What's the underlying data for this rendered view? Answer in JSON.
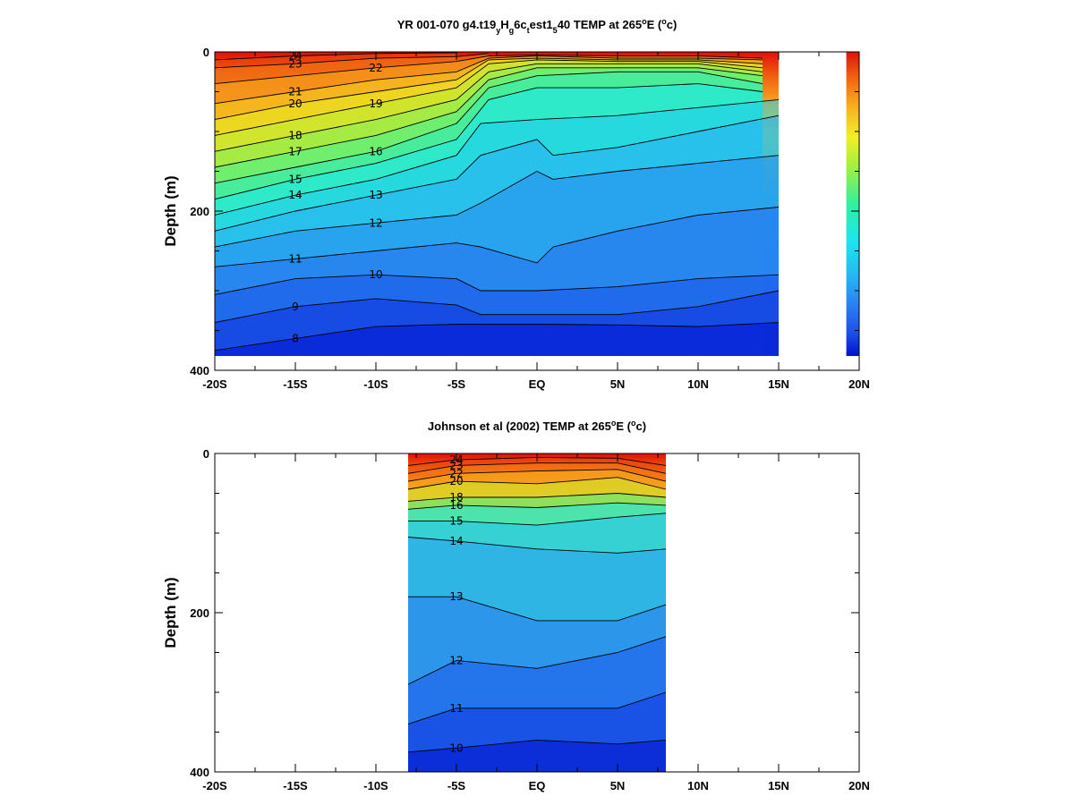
{
  "chart_data": [
    {
      "type": "heatmap",
      "variable": "TEMP",
      "title_parts": [
        "YR 001-070 g4.t19",
        "y",
        "H",
        "g",
        "6c",
        "t",
        "est1",
        "5",
        "40 TEMP at 265",
        "o",
        "E (",
        "o",
        "c)"
      ],
      "ylabel": "Depth (m)",
      "xlim": [
        -20,
        20
      ],
      "ylim": [
        400,
        0
      ],
      "y_ticks": [
        "0",
        "200",
        "400"
      ],
      "x_ticks": [
        "-20S",
        "-15S",
        "-10S",
        "-5S",
        "EQ",
        "5N",
        "10N",
        "15N",
        "20N"
      ],
      "data_x_range": [
        -20,
        15
      ],
      "land_mask_x_range": [
        15,
        19
      ],
      "colorscale": [
        "#0010d0",
        "#1a4ce8",
        "#2a7cf0",
        "#28b4f4",
        "#18e8f0",
        "#30f0a0",
        "#a0f040",
        "#f0f020",
        "#f8b020",
        "#f06010",
        "#e01008"
      ],
      "contours": [
        {
          "label": "8",
          "points": [
            [
              -20,
              375
            ],
            [
              -15,
              360
            ],
            [
              -10,
              345
            ],
            [
              -5,
              342
            ],
            [
              0,
              342
            ],
            [
              5,
              343
            ],
            [
              10,
              345
            ],
            [
              15,
              340
            ]
          ]
        },
        {
          "label": "9",
          "points": [
            [
              -20,
              340
            ],
            [
              -15,
              320
            ],
            [
              -10,
              310
            ],
            [
              -5,
              318
            ],
            [
              -3.5,
              330
            ],
            [
              0,
              330
            ],
            [
              5,
              330
            ],
            [
              10,
              320
            ],
            [
              15,
              300
            ]
          ]
        },
        {
          "label": "10",
          "points": [
            [
              -20,
              305
            ],
            [
              -15,
              285
            ],
            [
              -10,
              280
            ],
            [
              -5,
              285
            ],
            [
              -3.5,
              300
            ],
            [
              0,
              300
            ],
            [
              5,
              295
            ],
            [
              10,
              285
            ],
            [
              15,
              280
            ]
          ]
        },
        {
          "label": "11",
          "points": [
            [
              -20,
              270
            ],
            [
              -15,
              260
            ],
            [
              -10,
              250
            ],
            [
              -5,
              240
            ],
            [
              -3.5,
              245
            ],
            [
              0,
              265
            ],
            [
              1,
              245
            ],
            [
              5,
              225
            ],
            [
              10,
              205
            ],
            [
              15,
              195
            ]
          ]
        },
        {
          "label": "12",
          "points": [
            [
              -20,
              245
            ],
            [
              -15,
              225
            ],
            [
              -10,
              215
            ],
            [
              -5,
              205
            ],
            [
              -3.5,
              190
            ],
            [
              0,
              150
            ],
            [
              1,
              160
            ],
            [
              5,
              150
            ],
            [
              10,
              140
            ],
            [
              15,
              130
            ]
          ]
        },
        {
          "label": "13",
          "points": [
            [
              -20,
              225
            ],
            [
              -15,
              200
            ],
            [
              -10,
              180
            ],
            [
              -5,
              160
            ],
            [
              -3.5,
              130
            ],
            [
              0,
              110
            ],
            [
              1,
              130
            ],
            [
              5,
              120
            ],
            [
              10,
              100
            ],
            [
              15,
              80
            ]
          ]
        },
        {
          "label": "14",
          "points": [
            [
              -20,
              205
            ],
            [
              -15,
              180
            ],
            [
              -10,
              160
            ],
            [
              -5,
              130
            ],
            [
              -3.5,
              90
            ],
            [
              0,
              85
            ],
            [
              5,
              80
            ],
            [
              10,
              70
            ],
            [
              15,
              60
            ]
          ]
        },
        {
          "label": "15",
          "points": [
            [
              -20,
              185
            ],
            [
              -15,
              160
            ],
            [
              -10,
              140
            ],
            [
              -5,
              110
            ],
            [
              -3,
              60
            ],
            [
              0,
              45
            ],
            [
              5,
              45
            ],
            [
              10,
              40
            ],
            [
              14,
              50
            ]
          ]
        },
        {
          "label": "16",
          "points": [
            [
              -20,
              165
            ],
            [
              -15,
              145
            ],
            [
              -10,
              125
            ],
            [
              -5,
              90
            ],
            [
              -3,
              45
            ],
            [
              0,
              30
            ],
            [
              5,
              25
            ],
            [
              10,
              25
            ],
            [
              14,
              40
            ]
          ]
        },
        {
          "label": "17",
          "points": [
            [
              -20,
              145
            ],
            [
              -15,
              125
            ],
            [
              -10,
              105
            ],
            [
              -5,
              75
            ],
            [
              -3,
              35
            ],
            [
              0,
              20
            ],
            [
              5,
              20
            ],
            [
              10,
              20
            ],
            [
              14,
              30
            ]
          ]
        },
        {
          "label": "18",
          "points": [
            [
              -20,
              125
            ],
            [
              -15,
              105
            ],
            [
              -10,
              85
            ],
            [
              -5,
              60
            ],
            [
              -3,
              25
            ],
            [
              0,
              15
            ],
            [
              5,
              15
            ],
            [
              10,
              15
            ],
            [
              14,
              25
            ]
          ]
        },
        {
          "label": "19",
          "points": [
            [
              -20,
              105
            ],
            [
              -15,
              85
            ],
            [
              -10,
              65
            ],
            [
              -5,
              45
            ],
            [
              -3,
              15
            ],
            [
              0,
              10
            ],
            [
              5,
              12
            ],
            [
              10,
              12
            ],
            [
              14,
              20
            ]
          ]
        },
        {
          "label": "20",
          "points": [
            [
              -20,
              85
            ],
            [
              -15,
              65
            ],
            [
              -10,
              50
            ],
            [
              -5,
              35
            ],
            [
              -3,
              10
            ],
            [
              0,
              8
            ],
            [
              5,
              10
            ],
            [
              10,
              10
            ],
            [
              14,
              15
            ]
          ]
        },
        {
          "label": "21",
          "points": [
            [
              -20,
              65
            ],
            [
              -15,
              50
            ],
            [
              -10,
              35
            ],
            [
              -5,
              25
            ],
            [
              -3,
              8
            ],
            [
              0,
              5
            ],
            [
              5,
              8
            ],
            [
              10,
              8
            ],
            [
              14,
              10
            ]
          ]
        },
        {
          "label": "22",
          "points": [
            [
              -20,
              40
            ],
            [
              -15,
              30
            ],
            [
              -10,
              20
            ],
            [
              -5,
              12
            ],
            [
              -3,
              5
            ],
            [
              0,
              4
            ],
            [
              5,
              5
            ],
            [
              10,
              5
            ],
            [
              14,
              8
            ]
          ]
        },
        {
          "label": "23",
          "points": [
            [
              -20,
              20
            ],
            [
              -15,
              15
            ],
            [
              -10,
              8
            ],
            [
              -5,
              6
            ],
            [
              -3,
              2
            ]
          ]
        },
        {
          "label": "24",
          "points": [
            [
              -20,
              10
            ],
            [
              -15,
              5
            ],
            [
              -10,
              2
            ],
            [
              -5,
              1
            ]
          ]
        }
      ]
    },
    {
      "type": "heatmap",
      "variable": "TEMP",
      "title_parts": [
        "Johnson et al (2002) TEMP at 265",
        "o",
        "E (",
        "o",
        "c)"
      ],
      "ylabel": "Depth (m)",
      "xlim": [
        -20,
        20
      ],
      "ylim": [
        400,
        0
      ],
      "y_ticks": [
        "0",
        "200",
        "400"
      ],
      "x_ticks": [
        "-20S",
        "-15S",
        "-10S",
        "-5S",
        "EQ",
        "5N",
        "10N",
        "15N",
        "20N"
      ],
      "data_x_range": [
        -8,
        8
      ],
      "colorscale": [
        "#0010d0",
        "#1a4ce8",
        "#2a7cf0",
        "#28b4f4",
        "#18e8f0",
        "#30f0a0",
        "#a0f040",
        "#f0f020",
        "#f8b020",
        "#f06010",
        "#e01008"
      ],
      "contours": [
        {
          "label": "10",
          "points": [
            [
              -8,
              375
            ],
            [
              -5,
              370
            ],
            [
              0,
              360
            ],
            [
              5,
              365
            ],
            [
              8,
              360
            ]
          ]
        },
        {
          "label": "11",
          "points": [
            [
              -8,
              340
            ],
            [
              -5,
              320
            ],
            [
              0,
              320
            ],
            [
              5,
              320
            ],
            [
              8,
              300
            ]
          ]
        },
        {
          "label": "12",
          "points": [
            [
              -8,
              290
            ],
            [
              -5,
              260
            ],
            [
              0,
              270
            ],
            [
              5,
              250
            ],
            [
              8,
              230
            ]
          ]
        },
        {
          "label": "13",
          "points": [
            [
              -8,
              180
            ],
            [
              -5,
              180
            ],
            [
              0,
              210
            ],
            [
              5,
              210
            ],
            [
              8,
              190
            ]
          ]
        },
        {
          "label": "14",
          "points": [
            [
              -8,
              105
            ],
            [
              -5,
              110
            ],
            [
              0,
              120
            ],
            [
              5,
              125
            ],
            [
              8,
              120
            ]
          ]
        },
        {
          "label": "15",
          "points": [
            [
              -8,
              85
            ],
            [
              -5,
              85
            ],
            [
              0,
              90
            ],
            [
              5,
              80
            ],
            [
              8,
              75
            ]
          ]
        },
        {
          "label": "16",
          "points": [
            [
              -8,
              70
            ],
            [
              -5,
              65
            ],
            [
              0,
              68
            ],
            [
              5,
              62
            ],
            [
              8,
              65
            ]
          ]
        },
        {
          "label": "18",
          "points": [
            [
              -8,
              60
            ],
            [
              -5,
              55
            ],
            [
              0,
              55
            ],
            [
              5,
              50
            ],
            [
              8,
              55
            ]
          ]
        },
        {
          "label": "20",
          "points": [
            [
              -8,
              45
            ],
            [
              -5,
              35
            ],
            [
              0,
              38
            ],
            [
              5,
              30
            ],
            [
              8,
              45
            ]
          ]
        },
        {
          "label": "22",
          "points": [
            [
              -8,
              35
            ],
            [
              -5,
              25
            ],
            [
              0,
              22
            ],
            [
              5,
              20
            ],
            [
              8,
              35
            ]
          ]
        },
        {
          "label": "23",
          "points": [
            [
              -8,
              25
            ],
            [
              -5,
              15
            ],
            [
              0,
              12
            ],
            [
              5,
              12
            ],
            [
              8,
              25
            ]
          ]
        },
        {
          "label": "24",
          "points": [
            [
              -8,
              15
            ],
            [
              -5,
              8
            ],
            [
              0,
              5
            ],
            [
              5,
              6
            ],
            [
              8,
              15
            ]
          ]
        }
      ]
    }
  ]
}
